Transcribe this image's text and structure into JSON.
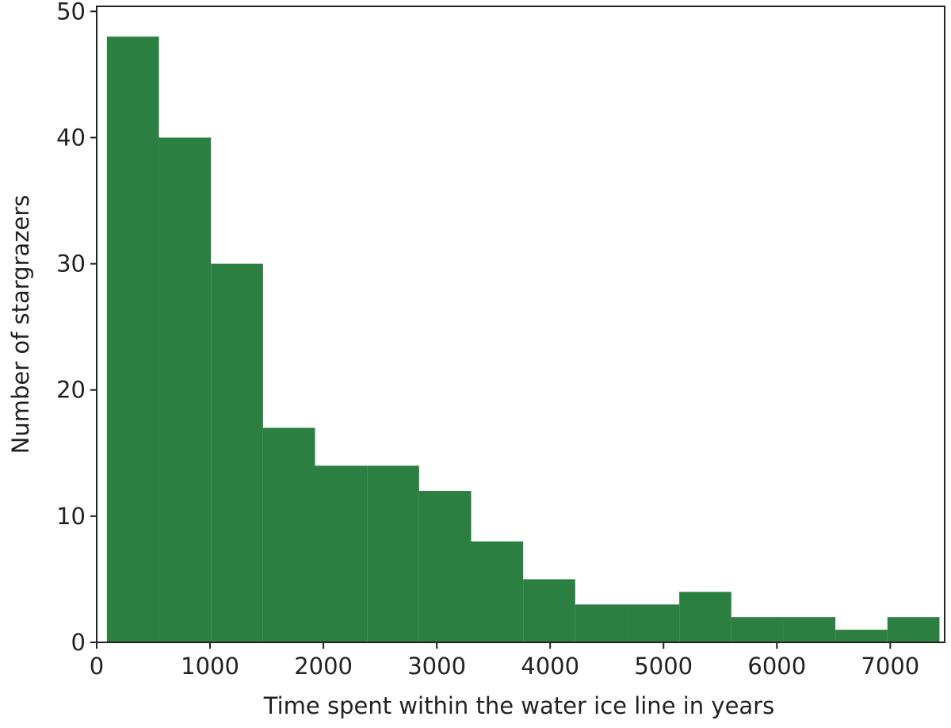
{
  "chart_data": {
    "type": "histogram",
    "xlabel": "Time spent within the water ice line in years",
    "ylabel": "Number of stargrazers",
    "bins": [
      90,
      549,
      1008,
      1467,
      1926,
      2385,
      2844,
      3303,
      3762,
      4221,
      4680,
      5139,
      5598,
      6057,
      6516,
      6975,
      7434
    ],
    "values": [
      48,
      40,
      30,
      17,
      14,
      14,
      12,
      8,
      5,
      3,
      3,
      4,
      2,
      2,
      1,
      2
    ],
    "color": "#2b7f41",
    "xlim": [
      0,
      7480
    ],
    "ylim": [
      0,
      50.4
    ],
    "xticks": [
      0,
      1000,
      2000,
      3000,
      4000,
      5000,
      6000,
      7000
    ],
    "yticks": [
      0,
      10,
      20,
      30,
      40,
      50
    ],
    "grid": false
  }
}
